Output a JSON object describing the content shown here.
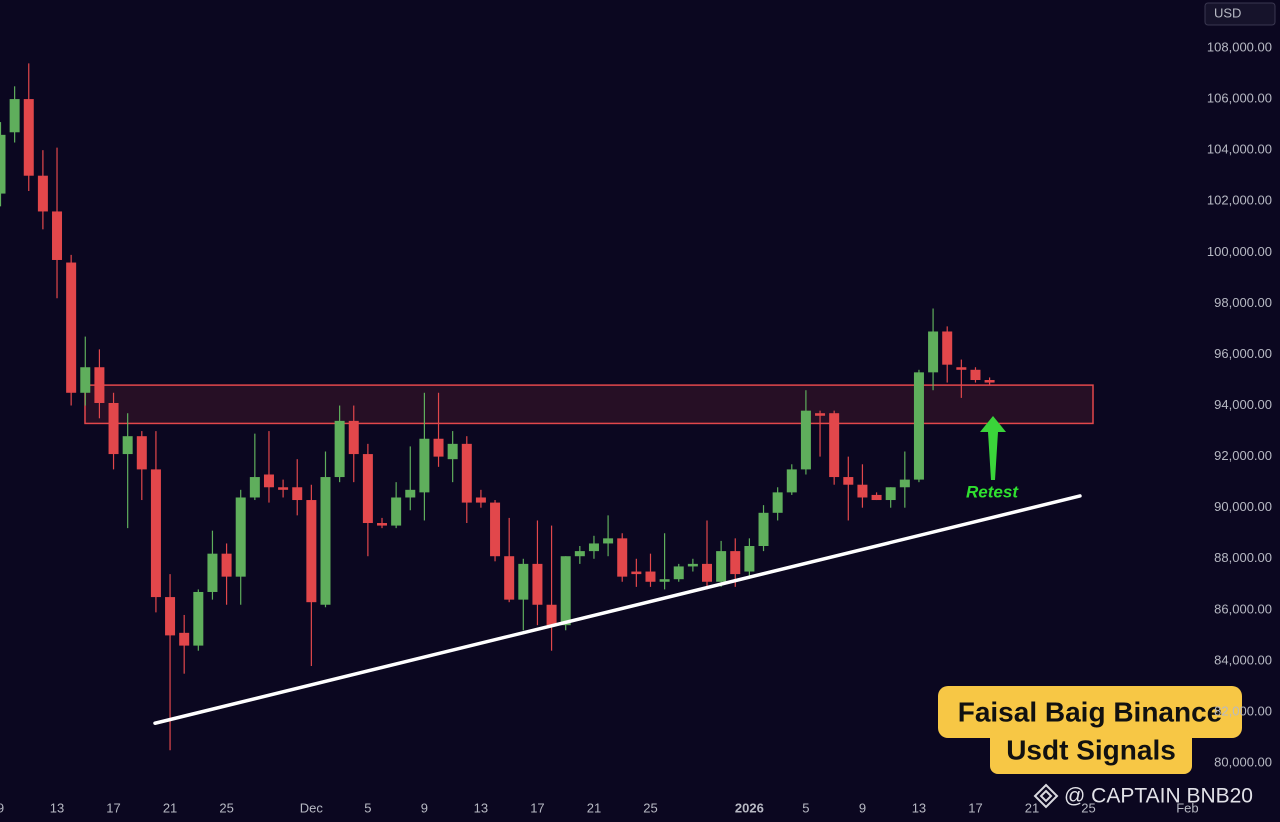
{
  "chart_data": {
    "type": "candlestick",
    "currency": "USD",
    "categories": [
      "9",
      null,
      null,
      null,
      "13",
      null,
      null,
      null,
      "17",
      null,
      null,
      null,
      "21",
      null,
      null,
      null,
      "25",
      null,
      null,
      null,
      null,
      null,
      "Dec",
      null,
      null,
      null,
      "5",
      null,
      null,
      null,
      "9",
      null,
      null,
      null,
      "13",
      null,
      null,
      null,
      "17",
      null,
      null,
      null,
      "21",
      null,
      null,
      null,
      "25",
      null,
      null,
      null,
      null,
      null,
      null,
      "2026",
      null,
      null,
      null,
      "5",
      null,
      null,
      null,
      "9",
      null,
      null,
      null,
      "13",
      null,
      null,
      null,
      "17",
      null,
      null,
      null,
      "21",
      null,
      null,
      null,
      "25",
      null,
      null,
      null,
      null,
      null,
      null,
      "Feb"
    ],
    "open": [
      102300,
      104700,
      106000,
      103000,
      101600,
      99600,
      94500,
      95500,
      94100,
      92100,
      92800,
      91500,
      86500,
      85100,
      84600,
      86700,
      88200,
      87300,
      90400,
      91300,
      90800,
      90800,
      90300,
      86200,
      91200,
      93400,
      92100,
      89400,
      89300,
      90400,
      90600,
      92700,
      91900,
      92500,
      90400,
      90200,
      88100,
      86400,
      87800,
      86200,
      85400,
      88100,
      88300,
      88600,
      88800,
      87500,
      87500,
      87100,
      87200,
      87700,
      87800,
      87100,
      88300,
      87500,
      88500,
      89800,
      90600,
      91500,
      93700,
      93700,
      91200,
      90900,
      90500,
      90300,
      90800,
      91100,
      95300,
      96900,
      95500,
      95400,
      95000,
      null,
      null,
      null,
      null,
      null,
      null,
      null,
      null,
      null,
      null,
      null,
      null,
      null,
      null
    ],
    "high": [
      105100,
      106500,
      107400,
      104000,
      104100,
      99900,
      96700,
      96200,
      94500,
      93700,
      93000,
      93000,
      87400,
      85800,
      86800,
      89100,
      88600,
      90700,
      92900,
      93000,
      91100,
      91900,
      90900,
      92200,
      94000,
      94000,
      92500,
      89600,
      91000,
      92400,
      94500,
      94500,
      93000,
      92800,
      90700,
      90300,
      89600,
      88000,
      89500,
      89300,
      88100,
      88500,
      88900,
      89700,
      89000,
      88000,
      88200,
      89000,
      87800,
      88000,
      89500,
      88700,
      88800,
      88800,
      90100,
      90800,
      91700,
      94600,
      93800,
      93800,
      92000,
      91700,
      90600,
      90800,
      92200,
      95400,
      97800,
      97100,
      95800,
      95500,
      95100,
      null,
      null,
      null,
      null,
      null,
      null,
      null,
      null,
      null,
      null,
      null,
      null,
      null,
      null
    ],
    "low": [
      101800,
      104300,
      102400,
      100900,
      98200,
      94000,
      94000,
      93500,
      91500,
      89200,
      90300,
      85900,
      80500,
      83500,
      84400,
      86400,
      86200,
      86200,
      90300,
      90200,
      90400,
      89700,
      83800,
      86100,
      91000,
      91000,
      88100,
      89200,
      89200,
      89900,
      89500,
      91600,
      91000,
      89400,
      90000,
      87900,
      86300,
      85200,
      85400,
      84400,
      85200,
      87800,
      88000,
      88100,
      87100,
      86900,
      86900,
      86800,
      87100,
      87500,
      86800,
      86900,
      86900,
      87300,
      88300,
      89500,
      90500,
      91300,
      92000,
      90900,
      89500,
      90000,
      90300,
      90000,
      90000,
      91000,
      94600,
      94900,
      94300,
      94900,
      94800,
      null,
      null,
      null,
      null,
      null,
      null,
      null,
      null,
      null,
      null,
      null,
      null,
      null,
      null
    ],
    "close": [
      104600,
      106000,
      103000,
      101600,
      99700,
      94500,
      95500,
      94100,
      92100,
      92800,
      91500,
      86500,
      85000,
      84600,
      86700,
      88200,
      87300,
      90400,
      91200,
      90800,
      90700,
      90300,
      86300,
      91200,
      93400,
      92100,
      89400,
      89300,
      90400,
      90700,
      92700,
      92000,
      92500,
      90200,
      90200,
      88100,
      86400,
      87800,
      86200,
      85400,
      88100,
      88300,
      88600,
      88800,
      87300,
      87400,
      87100,
      87200,
      87700,
      87800,
      87100,
      88300,
      87400,
      88500,
      89800,
      90600,
      91500,
      93800,
      93600,
      91200,
      90900,
      90400,
      90300,
      90800,
      91100,
      95300,
      96900,
      95600,
      95400,
      95000,
      94900,
      null,
      null,
      null,
      null,
      null,
      null,
      null,
      null,
      null,
      null,
      null,
      null,
      null,
      null
    ],
    "up_color": "#5fae5c",
    "down_color": "#e2474b",
    "ylim": [
      78750,
      109880
    ],
    "yticks": [
      {
        "value": 80000,
        "label": "80,000.00"
      },
      {
        "value": 82000,
        "label": "82,000.00"
      },
      {
        "value": 84000,
        "label": "84,000.00"
      },
      {
        "value": 86000,
        "label": "86,000.00"
      },
      {
        "value": 88000,
        "label": "88,000.00"
      },
      {
        "value": 90000,
        "label": "90,000.00"
      },
      {
        "value": 92000,
        "label": "92,000.00"
      },
      {
        "value": 94000,
        "label": "94,000.00"
      },
      {
        "value": 96000,
        "label": "96,000.00"
      },
      {
        "value": 98000,
        "label": "98,000.00"
      },
      {
        "value": 100000,
        "label": "100,000.00"
      },
      {
        "value": 102000,
        "label": "102,000.00"
      },
      {
        "value": 104000,
        "label": "104,000.00"
      },
      {
        "value": 106000,
        "label": "106,000.00"
      },
      {
        "value": 108000,
        "label": "108,000.00"
      }
    ],
    "grid": false,
    "zone": [
      93300,
      94800
    ],
    "trendline": [
      81560,
      90460
    ],
    "annotation": "Retest",
    "watermark": [
      "Faisal Baig Binance",
      "Usdt Signals"
    ],
    "credit": "@ CAPTAIN BNB20"
  }
}
